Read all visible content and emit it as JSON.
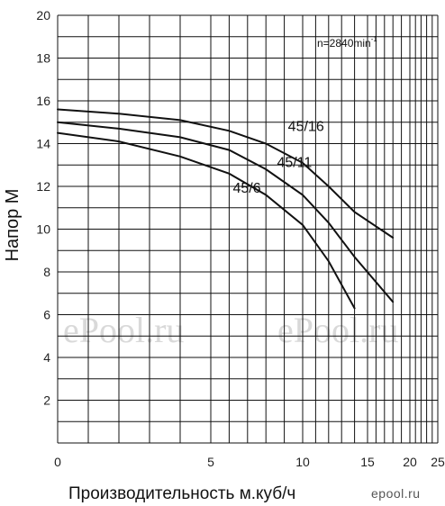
{
  "chart_data": {
    "type": "line",
    "title": "",
    "xlabel": "Производительность м.куб/ч",
    "ylabel": "Напор М",
    "x_ticks": [
      0,
      5,
      10,
      15,
      20,
      25
    ],
    "y_ticks": [
      2,
      4,
      6,
      8,
      10,
      12,
      14,
      16,
      18,
      20
    ],
    "ylim": [
      0,
      20
    ],
    "x_scale": "non-uniform (0–25)",
    "grid": true,
    "annotation": "n=2840min",
    "annotation_sup": "-1",
    "series": [
      {
        "name": "45/16",
        "x": [
          0,
          2,
          4,
          6,
          8,
          10,
          12,
          14,
          18
        ],
        "y": [
          15.6,
          15.4,
          15.1,
          14.6,
          14.0,
          13.1,
          12.0,
          10.8,
          9.6
        ]
      },
      {
        "name": "45/11",
        "x": [
          0,
          2,
          4,
          6,
          8,
          10,
          12,
          14,
          18
        ],
        "y": [
          15.0,
          14.7,
          14.3,
          13.7,
          12.8,
          11.6,
          10.3,
          8.7,
          6.6
        ]
      },
      {
        "name": "45/6",
        "x": [
          0,
          2,
          4,
          6,
          8,
          10,
          12,
          14
        ],
        "y": [
          14.5,
          14.1,
          13.4,
          12.6,
          11.6,
          10.2,
          8.5,
          6.3
        ]
      }
    ]
  },
  "watermark": "ePool.ru",
  "logo_text": "epool.ru"
}
